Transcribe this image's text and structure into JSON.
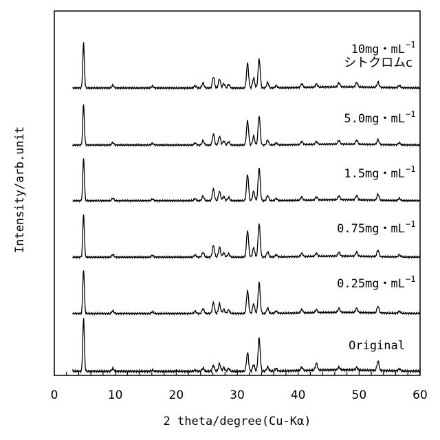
{
  "chart_data": {
    "type": "line",
    "title": "",
    "xlabel": "2 theta/degree(Cu-Kα)",
    "ylabel": "Intensity/arb.unit",
    "xlim": [
      0,
      60
    ],
    "x_ticks": [
      0,
      10,
      20,
      30,
      40,
      50,
      60
    ],
    "y_ticks_shown": false,
    "grid": false,
    "legend": "none",
    "stacked_offset": true,
    "line_color": "#000000",
    "peaks_2theta": [
      4.8,
      9.6,
      16.1,
      23.1,
      24.4,
      26.1,
      27.1,
      27.8,
      28.6,
      31.7,
      32.7,
      33.6,
      35.0,
      36.4,
      40.6,
      43.0,
      46.7,
      49.6,
      53.1,
      56.6
    ],
    "series": [
      {
        "label": "10mg・mL",
        "exponent": "−1",
        "sublabel": "シトクロムc",
        "intensities": [
          1.0,
          0.06,
          0.04,
          0.05,
          0.11,
          0.25,
          0.2,
          0.1,
          0.08,
          0.55,
          0.22,
          0.65,
          0.12,
          0.05,
          0.08,
          0.07,
          0.09,
          0.1,
          0.12,
          0.05
        ]
      },
      {
        "label": "5.0mg・mL",
        "exponent": "−1",
        "intensities": [
          1.0,
          0.06,
          0.04,
          0.05,
          0.11,
          0.27,
          0.22,
          0.1,
          0.08,
          0.6,
          0.22,
          0.72,
          0.12,
          0.05,
          0.08,
          0.07,
          0.09,
          0.1,
          0.12,
          0.05
        ]
      },
      {
        "label": "1.5mg・mL",
        "exponent": "−1",
        "intensities": [
          1.0,
          0.06,
          0.04,
          0.05,
          0.11,
          0.27,
          0.22,
          0.1,
          0.08,
          0.62,
          0.22,
          0.77,
          0.12,
          0.05,
          0.08,
          0.07,
          0.09,
          0.1,
          0.14,
          0.05
        ]
      },
      {
        "label": "0.75mg・mL",
        "exponent": "−1",
        "intensities": [
          1.0,
          0.06,
          0.04,
          0.05,
          0.11,
          0.27,
          0.23,
          0.1,
          0.08,
          0.62,
          0.22,
          0.78,
          0.12,
          0.05,
          0.08,
          0.07,
          0.09,
          0.1,
          0.15,
          0.05
        ]
      },
      {
        "label": "0.25mg・mL",
        "exponent": "−1",
        "intensities": [
          1.0,
          0.06,
          0.04,
          0.05,
          0.11,
          0.25,
          0.22,
          0.1,
          0.08,
          0.52,
          0.22,
          0.7,
          0.12,
          0.05,
          0.08,
          0.07,
          0.09,
          0.1,
          0.15,
          0.05
        ]
      },
      {
        "label": "Original",
        "exponent": "",
        "intensities": [
          1.0,
          0.05,
          0.02,
          0.02,
          0.06,
          0.11,
          0.14,
          0.07,
          0.05,
          0.35,
          0.12,
          0.62,
          0.08,
          0.05,
          0.06,
          0.13,
          0.05,
          0.05,
          0.18,
          0.04
        ]
      }
    ]
  }
}
